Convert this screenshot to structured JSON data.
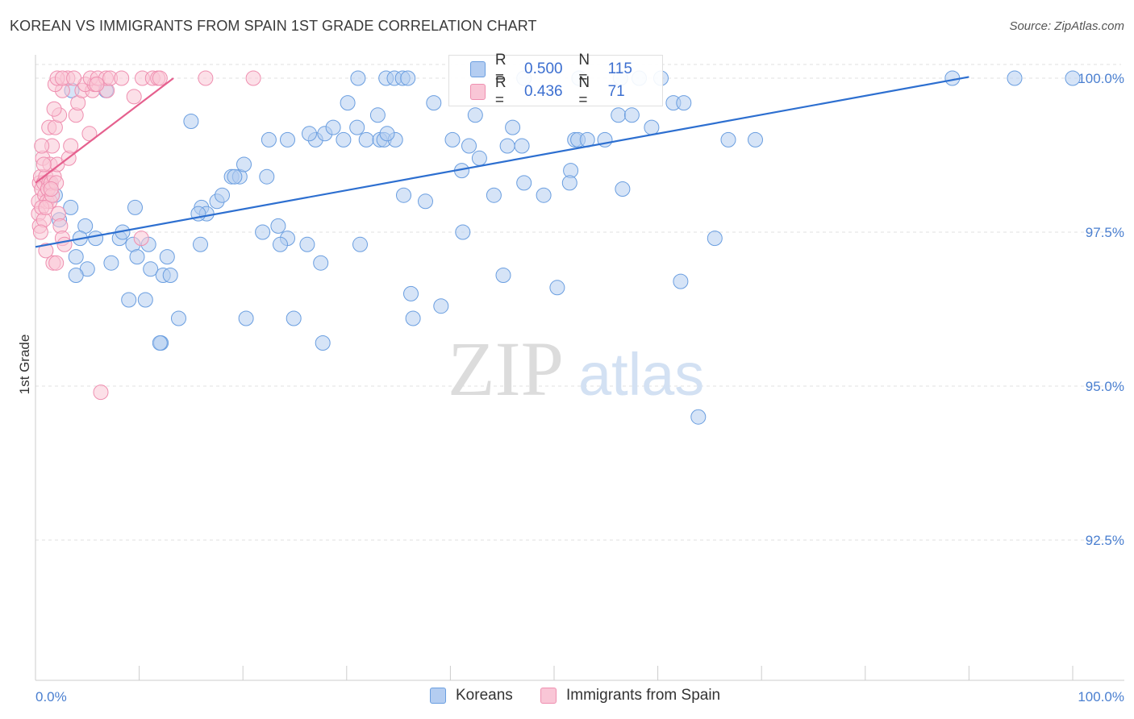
{
  "header": {
    "title": "KOREAN VS IMMIGRANTS FROM SPAIN 1ST GRADE CORRELATION CHART",
    "source": "Source: ZipAtlas.com"
  },
  "watermark": {
    "zip": "ZIP",
    "atlas": "atlas"
  },
  "legend": {
    "korean": {
      "r_label": "R = ",
      "r_value": "0.500",
      "n_label": "N = ",
      "n_value": "115"
    },
    "spain": {
      "r_label": "R = ",
      "r_value": "0.436",
      "n_label": "N = ",
      "n_value": "71"
    }
  },
  "chart_data": {
    "type": "scatter",
    "title": "KOREAN VS IMMIGRANTS FROM SPAIN 1ST GRADE CORRELATION CHART",
    "xlabel": "",
    "ylabel": "1st Grade",
    "xlim": [
      0,
      100
    ],
    "ylim": [
      90.0,
      100.3
    ],
    "x_tick_labels": [
      "0.0%",
      "100.0%"
    ],
    "y_ticks": [
      {
        "value": 100.0,
        "label": "100.0%"
      },
      {
        "value": 97.5,
        "label": "97.5%"
      },
      {
        "value": 95.0,
        "label": "95.0%"
      },
      {
        "value": 92.5,
        "label": "92.5%"
      }
    ],
    "series": [
      {
        "name": "Koreans",
        "color": "#6a9ee0",
        "fill": "#b4cdf1",
        "trend": {
          "x": [
            0,
            90
          ],
          "y": [
            97.26,
            100.02
          ]
        },
        "points": [
          [
            1.5,
            98.3
          ],
          [
            1.9,
            98.1
          ],
          [
            3.4,
            97.9
          ],
          [
            4.8,
            97.6
          ],
          [
            2.3,
            97.7
          ],
          [
            4.3,
            97.4
          ],
          [
            5.8,
            97.4
          ],
          [
            8.1,
            97.4
          ],
          [
            9.4,
            97.3
          ],
          [
            10.9,
            97.3
          ],
          [
            8.4,
            97.5
          ],
          [
            3.9,
            97.1
          ],
          [
            7.3,
            97.0
          ],
          [
            5.0,
            96.9
          ],
          [
            9.8,
            97.1
          ],
          [
            11.1,
            96.9
          ],
          [
            12.7,
            97.1
          ],
          [
            3.9,
            96.8
          ],
          [
            12.3,
            96.8
          ],
          [
            13.0,
            96.8
          ],
          [
            9.0,
            96.4
          ],
          [
            10.6,
            96.4
          ],
          [
            13.8,
            96.1
          ],
          [
            12.1,
            95.7
          ],
          [
            12.0,
            95.7
          ],
          [
            9.6,
            97.9
          ],
          [
            16.0,
            97.9
          ],
          [
            16.5,
            97.8
          ],
          [
            17.5,
            98.0
          ],
          [
            18.0,
            98.1
          ],
          [
            15.7,
            97.8
          ],
          [
            15.9,
            97.3
          ],
          [
            18.9,
            98.4
          ],
          [
            19.7,
            98.4
          ],
          [
            20.1,
            98.6
          ],
          [
            19.2,
            98.4
          ],
          [
            22.3,
            98.4
          ],
          [
            23.4,
            97.6
          ],
          [
            21.9,
            97.5
          ],
          [
            24.3,
            97.4
          ],
          [
            23.6,
            97.3
          ],
          [
            26.2,
            97.3
          ],
          [
            27.5,
            97.0
          ],
          [
            20.3,
            96.1
          ],
          [
            24.9,
            96.1
          ],
          [
            27.7,
            95.7
          ],
          [
            15.0,
            99.3
          ],
          [
            22.5,
            99.0
          ],
          [
            24.3,
            99.0
          ],
          [
            27.0,
            99.0
          ],
          [
            26.4,
            99.1
          ],
          [
            27.9,
            99.1
          ],
          [
            28.7,
            99.2
          ],
          [
            29.7,
            99.0
          ],
          [
            30.1,
            99.6
          ],
          [
            31.0,
            99.2
          ],
          [
            31.9,
            99.0
          ],
          [
            33.2,
            99.0
          ],
          [
            33.6,
            99.0
          ],
          [
            33.0,
            99.4
          ],
          [
            31.3,
            97.3
          ],
          [
            34.7,
            99.0
          ],
          [
            33.9,
            99.1
          ],
          [
            35.5,
            98.1
          ],
          [
            37.6,
            98.0
          ],
          [
            36.2,
            96.5
          ],
          [
            36.4,
            96.1
          ],
          [
            38.4,
            99.6
          ],
          [
            40.2,
            99.0
          ],
          [
            41.2,
            97.5
          ],
          [
            41.1,
            98.5
          ],
          [
            39.1,
            96.3
          ],
          [
            41.8,
            98.9
          ],
          [
            42.8,
            98.7
          ],
          [
            42.4,
            99.4
          ],
          [
            44.2,
            98.1
          ],
          [
            45.1,
            96.8
          ],
          [
            45.5,
            98.9
          ],
          [
            46.0,
            99.2
          ],
          [
            46.9,
            98.9
          ],
          [
            47.1,
            98.3
          ],
          [
            49.0,
            98.1
          ],
          [
            50.3,
            96.6
          ],
          [
            51.6,
            98.5
          ],
          [
            51.5,
            98.3
          ],
          [
            52.0,
            99.0
          ],
          [
            52.3,
            99.0
          ],
          [
            53.2,
            99.0
          ],
          [
            54.9,
            99.0
          ],
          [
            56.2,
            99.4
          ],
          [
            56.6,
            98.2
          ],
          [
            57.5,
            99.4
          ],
          [
            59.4,
            99.2
          ],
          [
            61.5,
            99.6
          ],
          [
            62.5,
            99.6
          ],
          [
            62.2,
            96.7
          ],
          [
            65.5,
            97.4
          ],
          [
            66.8,
            99.0
          ],
          [
            69.4,
            99.0
          ],
          [
            63.9,
            94.5
          ],
          [
            3.5,
            99.8
          ],
          [
            6.8,
            99.8
          ],
          [
            31.1,
            100.0
          ],
          [
            33.8,
            100.0
          ],
          [
            34.6,
            100.0
          ],
          [
            35.4,
            100.0
          ],
          [
            35.9,
            100.0
          ],
          [
            47.1,
            100.0
          ],
          [
            52.4,
            100.0
          ],
          [
            56.4,
            100.0
          ],
          [
            58.2,
            100.0
          ],
          [
            60.3,
            100.0
          ],
          [
            88.4,
            100.0
          ],
          [
            94.4,
            100.0
          ],
          [
            100.0,
            100.0
          ]
        ]
      },
      {
        "name": "Immigrants from Spain",
        "color": "#ef8fb0",
        "fill": "#f9c6d6",
        "trend": {
          "x": [
            0,
            13.3
          ],
          "y": [
            98.3,
            100.0
          ]
        },
        "points": [
          [
            0.3,
            98.0
          ],
          [
            0.4,
            98.3
          ],
          [
            0.5,
            98.4
          ],
          [
            0.6,
            98.2
          ],
          [
            0.7,
            98.7
          ],
          [
            0.8,
            98.3
          ],
          [
            0.9,
            98.1
          ],
          [
            1.0,
            98.4
          ],
          [
            1.1,
            98.0
          ],
          [
            1.2,
            98.2
          ],
          [
            1.3,
            98.3
          ],
          [
            1.4,
            98.0
          ],
          [
            0.3,
            97.8
          ],
          [
            0.4,
            97.6
          ],
          [
            0.6,
            97.9
          ],
          [
            0.8,
            97.7
          ],
          [
            1.0,
            97.9
          ],
          [
            1.2,
            98.2
          ],
          [
            1.5,
            98.3
          ],
          [
            1.6,
            98.1
          ],
          [
            1.8,
            98.4
          ],
          [
            2.0,
            98.3
          ],
          [
            2.2,
            97.8
          ],
          [
            2.4,
            97.6
          ],
          [
            2.6,
            97.4
          ],
          [
            2.8,
            97.3
          ],
          [
            0.5,
            97.5
          ],
          [
            1.0,
            97.2
          ],
          [
            1.7,
            97.0
          ],
          [
            2.0,
            97.0
          ],
          [
            1.4,
            98.6
          ],
          [
            1.6,
            98.9
          ],
          [
            2.1,
            98.6
          ],
          [
            3.2,
            98.7
          ],
          [
            3.4,
            98.9
          ],
          [
            1.3,
            99.2
          ],
          [
            1.9,
            99.2
          ],
          [
            2.3,
            99.4
          ],
          [
            3.9,
            99.4
          ],
          [
            5.2,
            99.1
          ],
          [
            1.8,
            99.5
          ],
          [
            4.1,
            99.6
          ],
          [
            4.5,
            99.8
          ],
          [
            5.5,
            99.8
          ],
          [
            6.9,
            99.8
          ],
          [
            9.5,
            99.7
          ],
          [
            2.6,
            99.8
          ],
          [
            4.8,
            99.9
          ],
          [
            5.7,
            99.9
          ],
          [
            1.9,
            99.9
          ],
          [
            3.1,
            100.0
          ],
          [
            2.1,
            100.0
          ],
          [
            2.6,
            100.0
          ],
          [
            3.7,
            100.0
          ],
          [
            5.3,
            100.0
          ],
          [
            6.0,
            100.0
          ],
          [
            6.8,
            100.0
          ],
          [
            7.2,
            100.0
          ],
          [
            8.3,
            100.0
          ],
          [
            10.3,
            100.0
          ],
          [
            11.3,
            100.0
          ],
          [
            11.8,
            100.0
          ],
          [
            12.0,
            100.0
          ],
          [
            16.4,
            100.0
          ],
          [
            21.0,
            100.0
          ],
          [
            5.9,
            99.9
          ],
          [
            0.6,
            98.9
          ],
          [
            0.8,
            98.6
          ],
          [
            1.5,
            98.2
          ],
          [
            10.2,
            97.4
          ],
          [
            6.3,
            94.9
          ]
        ]
      }
    ]
  }
}
